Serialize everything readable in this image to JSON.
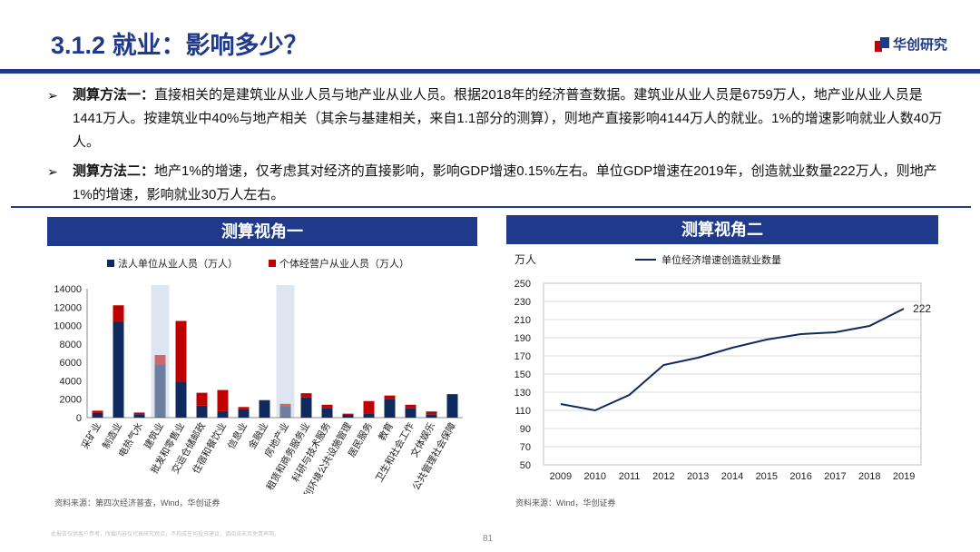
{
  "header": {
    "title": "3.1.2 就业：影响多少？",
    "logo": "华创研究"
  },
  "bullets": [
    {
      "lead": "测算方法一：",
      "body": "直接相关的是建筑业从业人员与地产业从业人员。根据2018年的经济普查数据。建筑业从业人员是6759万人，地产业从业人员是1441万人。按建筑业中40%与地产相关（其余与基建相关，来自1.1部分的测算），则地产直接影响4144万人的就业。1%的增速影响就业人数40万人。"
    },
    {
      "lead": "测算方法二：",
      "body": "地产1%的增速，仅考虑其对经济的直接影响，影响GDP增速0.15%左右。单位GDP增速在2019年，创造就业数量222万人，则地产1%的增速，影响就业30万人左右。"
    }
  ],
  "panels": {
    "left": {
      "header": "测算视角一",
      "source": "资料来源：第四次经济普查，Wind，华创证券"
    },
    "right": {
      "header": "测算视角二",
      "source": "资料来源：Wind，华创证券"
    }
  },
  "footer": {
    "disclaimer": "此报告仅供客户参考，所载内容仅代表研究观点，不构成任何投资建议，请阅读末页免责声明。",
    "page": "81"
  },
  "colors": {
    "navy": "#0e2a5e",
    "red": "#c00000",
    "highlight": "#dde6f0",
    "brand": "#1f3a8a"
  },
  "chart_data": [
    {
      "type": "bar",
      "stacked": true,
      "categories": [
        "采矿业",
        "制造业",
        "电热气水",
        "建筑业",
        "批发和零售业",
        "交运仓储邮政",
        "住宿和餐饮业",
        "信息业",
        "金融业",
        "房地产业",
        "租赁和商务服务业",
        "科研与技术服务",
        "水利环境公共设施管理",
        "居民服务",
        "教育",
        "卫生和社会工作",
        "文体娱乐",
        "公共管理社会保障"
      ],
      "series": [
        {
          "name": "法人单位从业人员（万人）",
          "color": "#0e2a5e",
          "values": [
            500,
            10400,
            380,
            5800,
            3900,
            1300,
            700,
            900,
            1900,
            1250,
            2200,
            1050,
            300,
            400,
            2050,
            1000,
            370,
            2550
          ]
        },
        {
          "name": "个体经营户从业人员（万人）",
          "color": "#c00000",
          "values": [
            250,
            1800,
            170,
            1000,
            6600,
            1400,
            2300,
            250,
            0,
            250,
            450,
            350,
            130,
            1400,
            350,
            400,
            300,
            0
          ]
        }
      ],
      "highlighted": [
        "建筑业",
        "房地产业"
      ],
      "ylim": [
        0,
        14000
      ],
      "yticks": [
        0,
        2000,
        4000,
        6000,
        8000,
        10000,
        12000,
        14000
      ],
      "legend_position": "top",
      "grid": false
    },
    {
      "type": "line",
      "x": [
        2009,
        2010,
        2011,
        2012,
        2013,
        2014,
        2015,
        2016,
        2017,
        2018,
        2019
      ],
      "series": [
        {
          "name": "单位经济增速创造就业数量",
          "color": "#0e2a5e",
          "values": [
            117,
            110,
            127,
            160,
            168,
            179,
            188,
            194,
            196,
            203,
            222
          ]
        }
      ],
      "ylabel": "万人",
      "ylim": [
        50,
        250
      ],
      "yticks": [
        50,
        70,
        90,
        110,
        130,
        150,
        170,
        190,
        210,
        230,
        250
      ],
      "end_label": "222",
      "legend_position": "top",
      "grid": true
    }
  ]
}
